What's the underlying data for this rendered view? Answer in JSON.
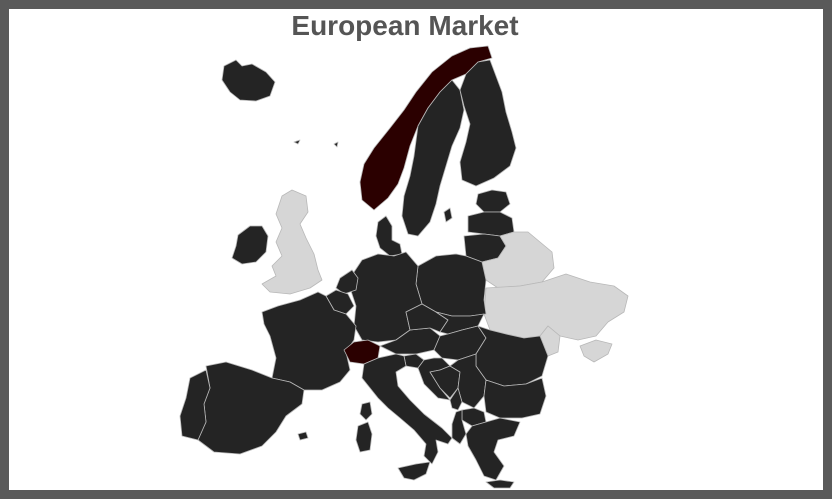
{
  "title": "European Market",
  "colors": {
    "frame": "#5a5a5a",
    "title": "#555555",
    "default_country": "#242424",
    "highlight_country": "#2b0000",
    "inactive_country": "#d6d6d6",
    "border": "#b8b8b8"
  },
  "countries": [
    {
      "name": "iceland",
      "status": "default"
    },
    {
      "name": "ireland",
      "status": "default"
    },
    {
      "name": "united-kingdom",
      "status": "inactive"
    },
    {
      "name": "norway",
      "status": "highlight"
    },
    {
      "name": "sweden",
      "status": "default"
    },
    {
      "name": "finland",
      "status": "default"
    },
    {
      "name": "denmark",
      "status": "default"
    },
    {
      "name": "estonia",
      "status": "default"
    },
    {
      "name": "latvia",
      "status": "default"
    },
    {
      "name": "lithuania",
      "status": "default"
    },
    {
      "name": "belarus",
      "status": "inactive"
    },
    {
      "name": "ukraine",
      "status": "inactive"
    },
    {
      "name": "moldova",
      "status": "inactive"
    },
    {
      "name": "poland",
      "status": "default"
    },
    {
      "name": "germany",
      "status": "default"
    },
    {
      "name": "netherlands",
      "status": "default"
    },
    {
      "name": "belgium",
      "status": "default"
    },
    {
      "name": "france",
      "status": "default"
    },
    {
      "name": "spain",
      "status": "default"
    },
    {
      "name": "portugal",
      "status": "default"
    },
    {
      "name": "switzerland",
      "status": "highlight"
    },
    {
      "name": "austria",
      "status": "default"
    },
    {
      "name": "czechia",
      "status": "default"
    },
    {
      "name": "slovakia",
      "status": "default"
    },
    {
      "name": "hungary",
      "status": "default"
    },
    {
      "name": "italy",
      "status": "default"
    },
    {
      "name": "slovenia",
      "status": "default"
    },
    {
      "name": "croatia",
      "status": "default"
    },
    {
      "name": "bosnia",
      "status": "default"
    },
    {
      "name": "serbia",
      "status": "default"
    },
    {
      "name": "romania",
      "status": "default"
    },
    {
      "name": "bulgaria",
      "status": "default"
    },
    {
      "name": "greece",
      "status": "default"
    },
    {
      "name": "albania",
      "status": "default"
    },
    {
      "name": "north-macedonia",
      "status": "default"
    },
    {
      "name": "montenegro",
      "status": "default"
    },
    {
      "name": "sardinia",
      "status": "default"
    },
    {
      "name": "corsica",
      "status": "default"
    },
    {
      "name": "sicily",
      "status": "default"
    },
    {
      "name": "gotland",
      "status": "default"
    },
    {
      "name": "mallorca",
      "status": "default"
    },
    {
      "name": "crete",
      "status": "default"
    }
  ]
}
